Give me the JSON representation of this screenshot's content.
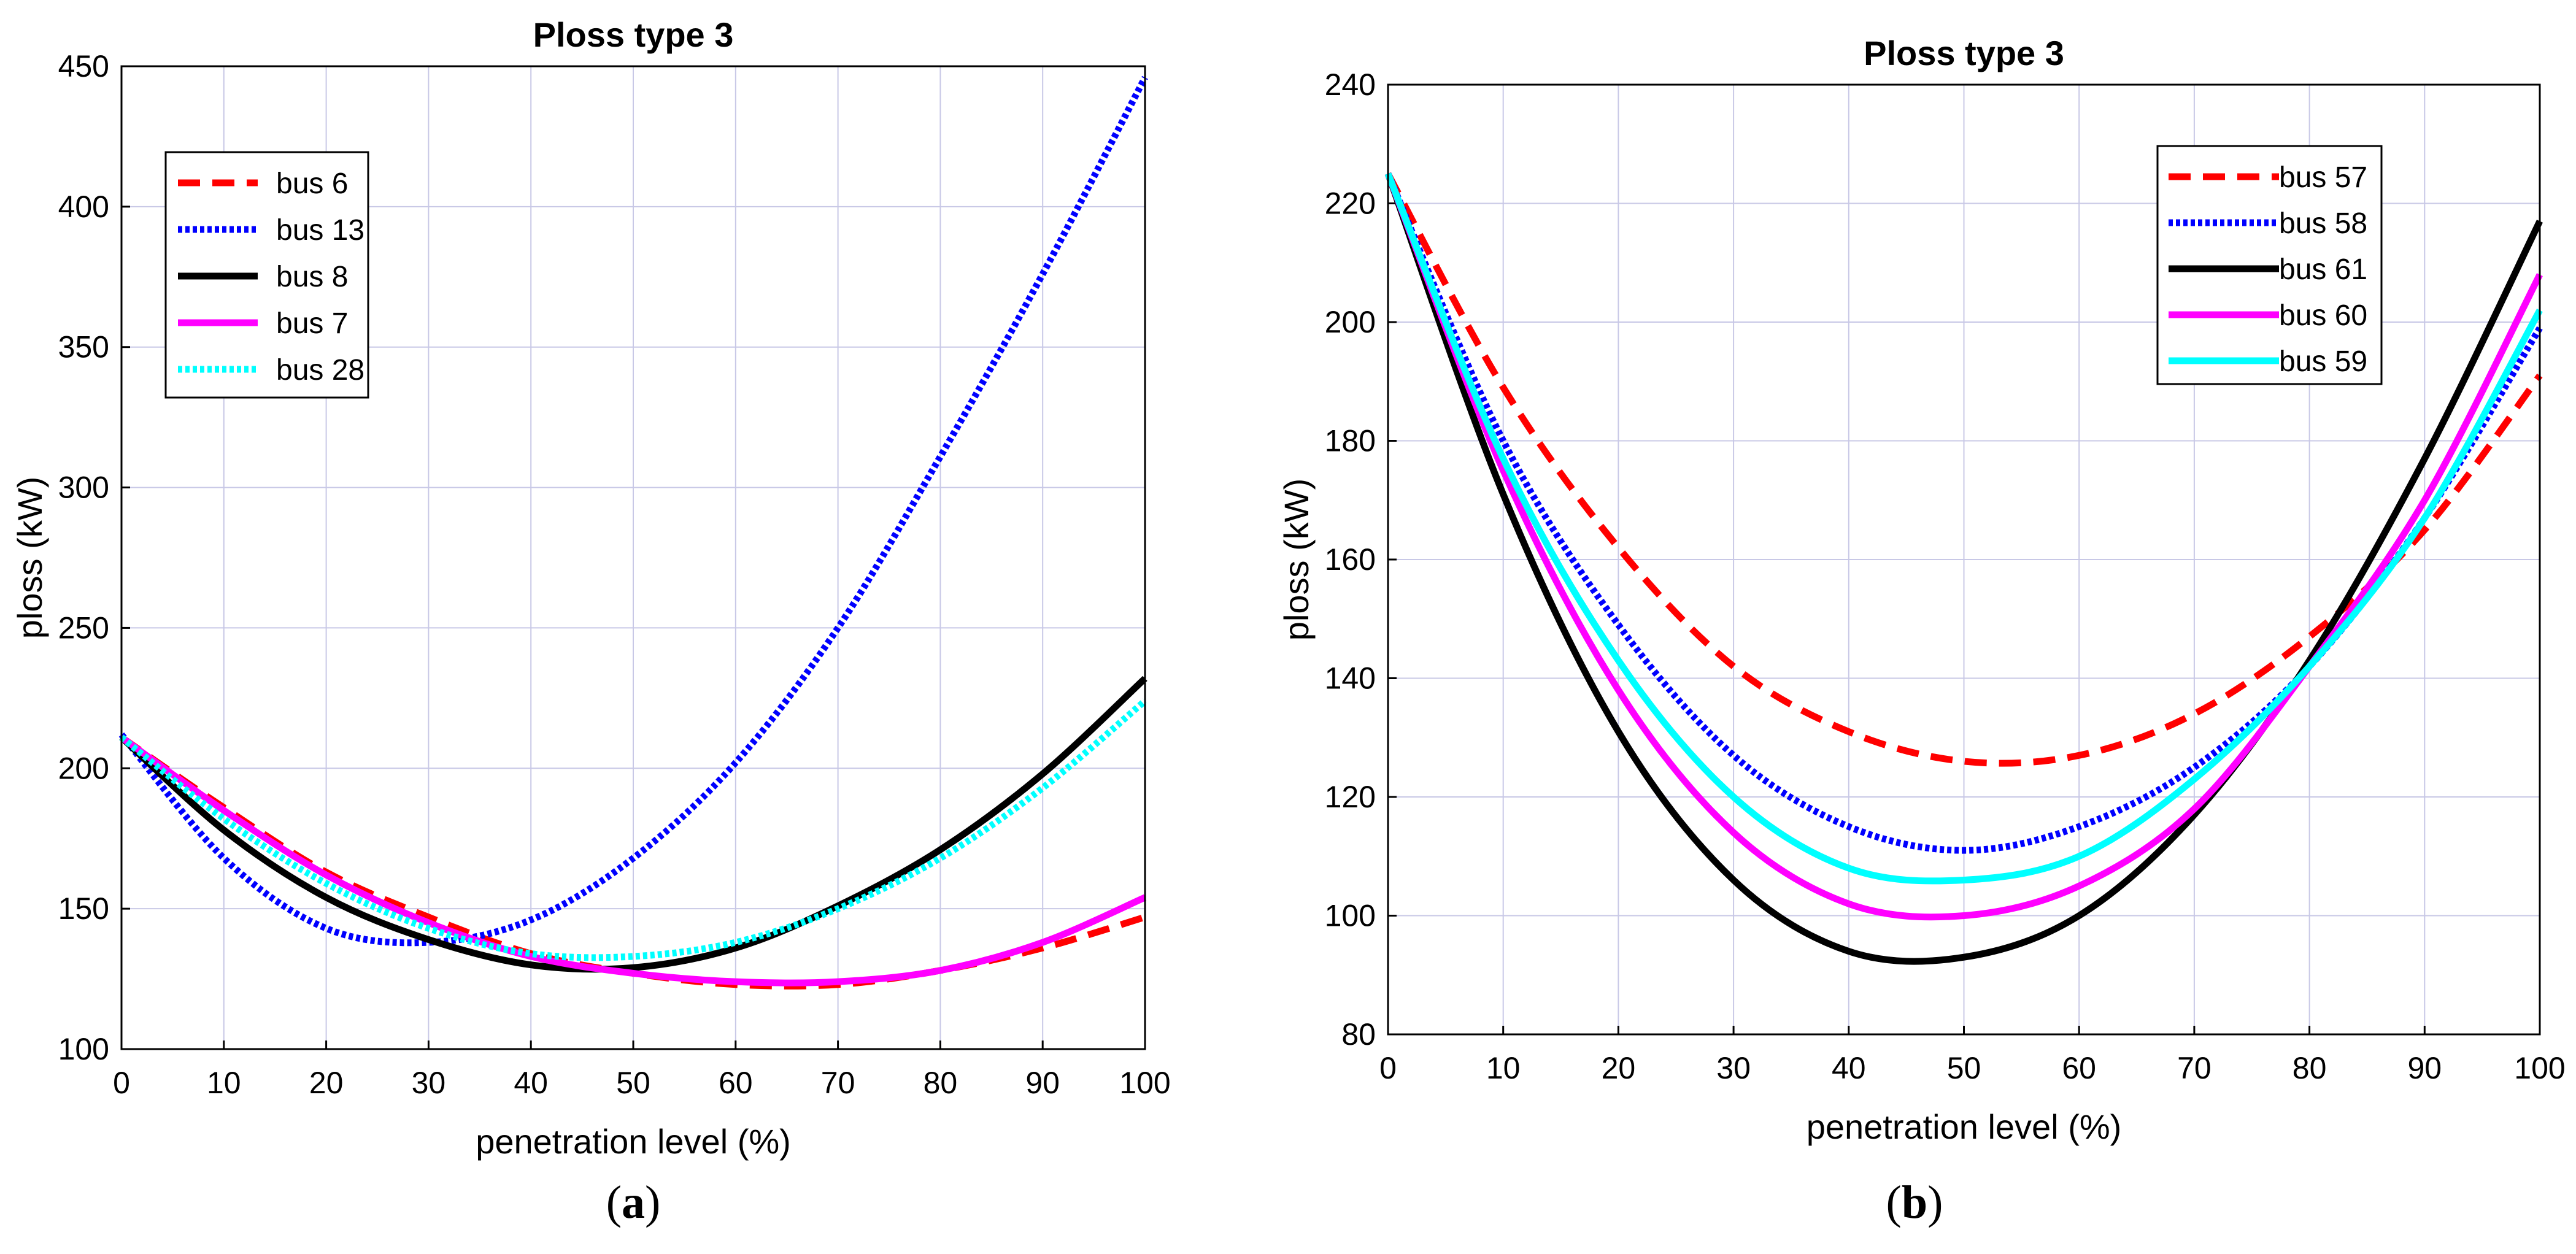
{
  "chart_data": [
    {
      "type": "line",
      "title": "Ploss type 3",
      "xlabel": "penetration level (%)",
      "ylabel": "ploss (kW)",
      "xlim": [
        0,
        100
      ],
      "ylim": [
        100,
        450
      ],
      "xticks": [
        0,
        10,
        20,
        30,
        40,
        50,
        60,
        70,
        80,
        90,
        100
      ],
      "yticks": [
        100,
        150,
        200,
        250,
        300,
        350,
        400,
        450
      ],
      "grid": true,
      "legend_position": "top-left",
      "panel_label": {
        "open": "(",
        "letter": "a",
        "close": ")"
      },
      "series": [
        {
          "name": "bus 6",
          "color": "#ff0000",
          "style": "dashed",
          "x": [
            0,
            10,
            20,
            30,
            40,
            50,
            60,
            70,
            80,
            90,
            100
          ],
          "values": [
            211,
            186,
            163,
            147,
            134,
            127,
            123,
            123,
            128,
            136,
            147
          ]
        },
        {
          "name": "bus 13",
          "color": "#0000ff",
          "style": "dotted",
          "x": [
            0,
            10,
            20,
            30,
            40,
            50,
            60,
            70,
            80,
            90,
            100
          ],
          "values": [
            212,
            168,
            143,
            138,
            146,
            168,
            202,
            250,
            311,
            376,
            446
          ]
        },
        {
          "name": "bus 8",
          "color": "#000000",
          "style": "solid",
          "x": [
            0,
            10,
            20,
            30,
            40,
            50,
            60,
            70,
            80,
            90,
            100
          ],
          "values": [
            211,
            178,
            154,
            139,
            130,
            129,
            136,
            151,
            171,
            198,
            232
          ]
        },
        {
          "name": "bus 7",
          "color": "#ff00ff",
          "style": "solid",
          "x": [
            0,
            10,
            20,
            30,
            40,
            50,
            60,
            70,
            80,
            90,
            100
          ],
          "values": [
            211,
            185,
            162,
            145,
            133,
            127,
            124,
            124,
            128,
            138,
            154
          ]
        },
        {
          "name": "bus 28",
          "color": "#00ffff",
          "style": "dotted",
          "x": [
            0,
            10,
            20,
            30,
            40,
            50,
            60,
            70,
            80,
            90,
            100
          ],
          "values": [
            211,
            182,
            159,
            143,
            134,
            133,
            138,
            150,
            168,
            193,
            224
          ]
        }
      ]
    },
    {
      "type": "line",
      "title": "Ploss type 3",
      "xlabel": "penetration level (%)",
      "ylabel": "ploss (kW)",
      "xlim": [
        0,
        100
      ],
      "ylim": [
        80,
        240
      ],
      "xticks": [
        0,
        10,
        20,
        30,
        40,
        50,
        60,
        70,
        80,
        90,
        100
      ],
      "yticks": [
        80,
        100,
        120,
        140,
        160,
        180,
        200,
        220,
        240
      ],
      "grid": true,
      "legend_position": "top-right",
      "panel_label": {
        "open": "(",
        "letter": "b",
        "close": ")"
      },
      "series": [
        {
          "name": "bus 57",
          "color": "#ff0000",
          "style": "dashed",
          "x": [
            0,
            10,
            20,
            30,
            40,
            50,
            60,
            70,
            80,
            90,
            100
          ],
          "values": [
            225,
            189,
            162,
            142,
            131,
            126,
            127,
            134,
            147,
            165,
            191
          ]
        },
        {
          "name": "bus 58",
          "color": "#0000ff",
          "style": "dotted",
          "x": [
            0,
            10,
            20,
            30,
            40,
            50,
            60,
            70,
            80,
            90,
            100
          ],
          "values": [
            225,
            180,
            149,
            127,
            115,
            111,
            115,
            125,
            142,
            167,
            199
          ]
        },
        {
          "name": "bus 61",
          "color": "#000000",
          "style": "solid",
          "x": [
            0,
            10,
            20,
            30,
            40,
            50,
            60,
            70,
            80,
            90,
            100
          ],
          "values": [
            225,
            171,
            131,
            106,
            94,
            93,
            100,
            117,
            143,
            177,
            217
          ]
        },
        {
          "name": "bus 60",
          "color": "#ff00ff",
          "style": "solid",
          "x": [
            0,
            10,
            20,
            30,
            40,
            50,
            60,
            70,
            80,
            90,
            100
          ],
          "values": [
            225,
            175,
            138,
            114,
            102,
            100,
            105,
            118,
            142,
            170,
            208
          ]
        },
        {
          "name": "bus 59",
          "color": "#00ffff",
          "style": "solid",
          "x": [
            0,
            10,
            20,
            30,
            40,
            50,
            60,
            70,
            80,
            90,
            100
          ],
          "values": [
            225,
            177,
            143,
            120,
            108,
            106,
            110,
            123,
            142,
            167,
            202
          ]
        }
      ]
    }
  ]
}
